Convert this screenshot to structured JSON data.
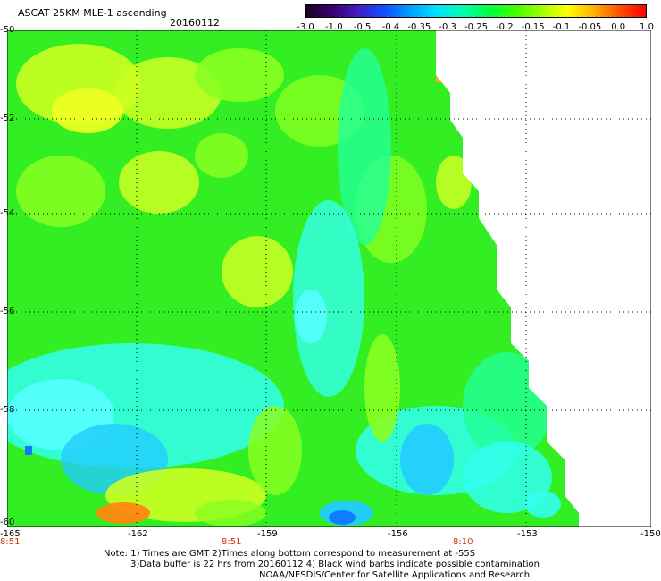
{
  "header": {
    "title": "ASCAT 25KM MLE-1 ascending",
    "date": "20160112"
  },
  "colorbar": {
    "labels": [
      "-3.0",
      "-1.0",
      "-0.5",
      "-0.4",
      "-0.35",
      "-0.3",
      "-0.25",
      "-0.2",
      "-0.15",
      "-0.1",
      "-0.05",
      "0.0",
      "1.0"
    ],
    "colors": [
      "#1a0020",
      "#3a0070",
      "#4020c0",
      "#1050ff",
      "#00a0ff",
      "#00e0ff",
      "#00ffb0",
      "#00ff40",
      "#40ff00",
      "#a0ff00",
      "#ffff00",
      "#ffb000",
      "#ff5000",
      "#ff0000"
    ]
  },
  "map": {
    "lat_labels": [
      "-50",
      "-52",
      "-54",
      "-56",
      "-58",
      "-60"
    ],
    "lon_labels": [
      "-165",
      "-162",
      "-159",
      "-156",
      "-153",
      "-150"
    ],
    "time_labels": [
      "8:51",
      "8:51",
      "8:10"
    ],
    "field_colors": {
      "green": "#33ee22",
      "light_green": "#88ff22",
      "yellow_green": "#ccff22",
      "yellow": "#eeff22",
      "cyan_green": "#22ff99",
      "cyan": "#33ffee",
      "light_cyan": "#55ffff",
      "blue_cyan": "#22ccff",
      "blue": "#1177ff",
      "orange": "#ffaa22",
      "dark_orange": "#ff8811"
    }
  },
  "notes": {
    "line1": "Note: 1) Times are GMT 2)Times along bottom correspond to measurement at -55S",
    "line2": "3)Data buffer is 22 hrs from 20160112 4) Black wind barbs indicate possible contamination",
    "line3": "NOAA/NESDIS/Center for Satellite Applications and Research"
  }
}
